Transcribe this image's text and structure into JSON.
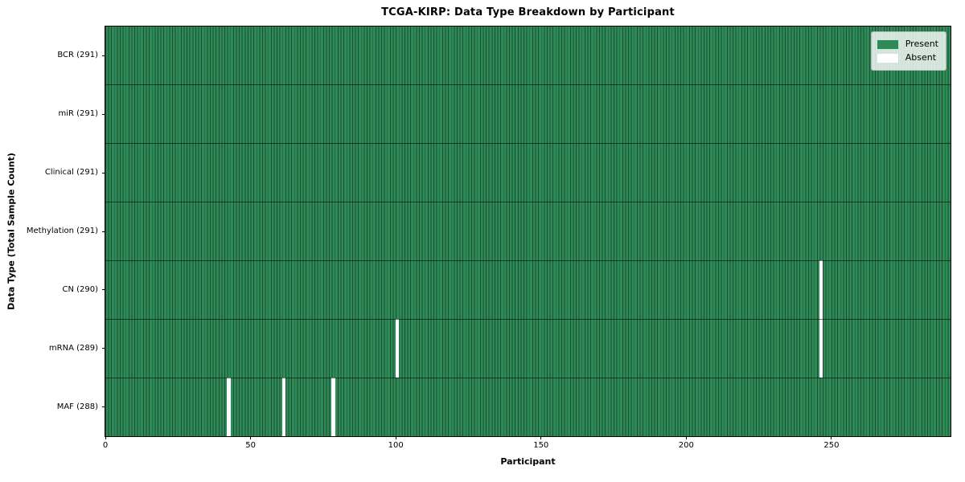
{
  "chart_data": {
    "type": "heatmap",
    "title": "TCGA-KIRP: Data Type Breakdown by Participant",
    "xlabel": "Participant",
    "ylabel": "Data Type (Total Sample Count)",
    "n_participants": 291,
    "x_range": [
      0,
      291
    ],
    "x_ticks": [
      0,
      50,
      100,
      150,
      200,
      250
    ],
    "grid": "row separators only",
    "rows": [
      {
        "label": "BCR (291)",
        "data_type": "BCR",
        "sample_count": 291,
        "absent_participants": []
      },
      {
        "label": "miR (291)",
        "data_type": "miR",
        "sample_count": 291,
        "absent_participants": []
      },
      {
        "label": "Clinical (291)",
        "data_type": "Clinical",
        "sample_count": 291,
        "absent_participants": []
      },
      {
        "label": "Methylation (291)",
        "data_type": "Methylation",
        "sample_count": 291,
        "absent_participants": []
      },
      {
        "label": "CN (290)",
        "data_type": "CN",
        "sample_count": 290,
        "absent_participants": [
          246
        ]
      },
      {
        "label": "mRNA (289)",
        "data_type": "mRNA",
        "sample_count": 289,
        "absent_participants": [
          100,
          246
        ]
      },
      {
        "label": "MAF (288)",
        "data_type": "MAF",
        "sample_count": 288,
        "absent_participants": [
          42,
          61,
          78
        ]
      }
    ],
    "legend": {
      "position": "upper right",
      "entries": [
        {
          "label": "Present",
          "color": "#2e8b57"
        },
        {
          "label": "Absent",
          "color": "#ffffff"
        }
      ]
    },
    "colors": {
      "present": "#2e8b57",
      "absent": "#ffffff",
      "cell_edge": "#1a4f33",
      "row_separator": "rgba(0,0,0,0.55)",
      "axis": "#000000",
      "background": "#ffffff"
    }
  }
}
